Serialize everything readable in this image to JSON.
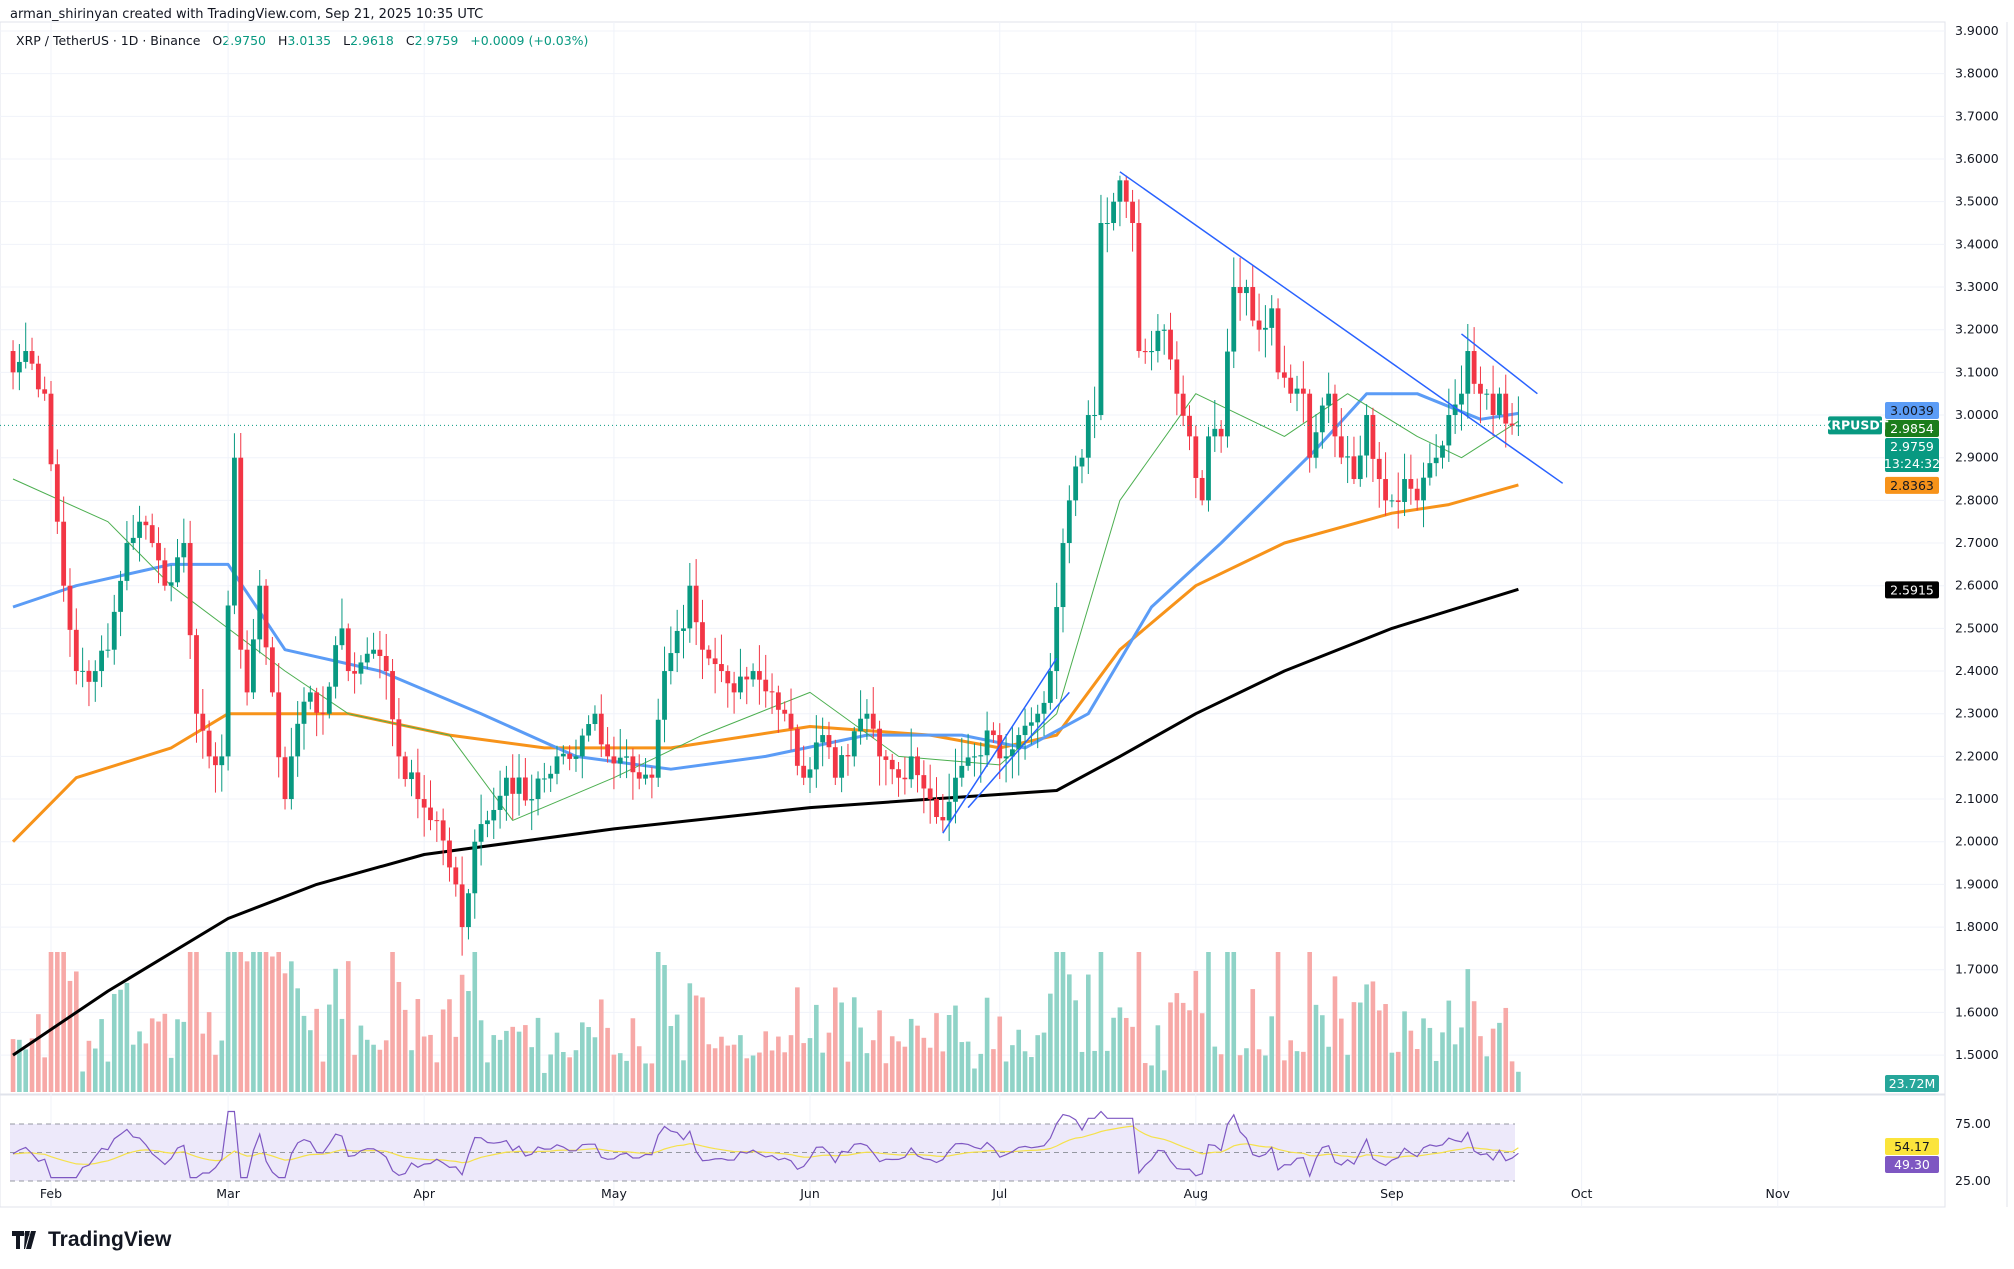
{
  "credit": "arman_shirinyan created with TradingView.com, Sep 21, 2025 10:35 UTC",
  "legend": {
    "symbol": "XRP / TetherUS · 1D · Binance",
    "o_label": "O",
    "o": "2.9750",
    "h_label": "H",
    "h": "3.0135",
    "l_label": "L",
    "l": "2.9618",
    "c_label": "C",
    "c": "2.9759",
    "change": "+0.0009 (+0.03%)"
  },
  "logo": "TradingView",
  "colors": {
    "up": "#089981",
    "down": "#f23645",
    "ma20": "#4caf50",
    "ma50": "#5b9cf6",
    "ma100": "#f7931a",
    "ma200": "#000000",
    "trendline": "#2962ff",
    "rsi": "#7e57c2",
    "rsi_ma": "#f5e14b"
  },
  "chart_data": {
    "type": "candlestick",
    "symbol": "XRPUSDT",
    "ylim": [
      1.45,
      3.9
    ],
    "y_ticks": [
      "3.9000",
      "3.8000",
      "3.7000",
      "3.6000",
      "3.5000",
      "3.4000",
      "3.3000",
      "3.2000",
      "3.1000",
      "3.0000",
      "2.9000",
      "2.8000",
      "2.7000",
      "2.6000",
      "2.5000",
      "2.4000",
      "2.3000",
      "2.2000",
      "2.1000",
      "2.0000",
      "1.9000",
      "1.8000",
      "1.7000",
      "1.6000",
      "1.5000"
    ],
    "x_ticks": [
      {
        "label": "Feb",
        "date": "2025-02-01"
      },
      {
        "label": "Mar",
        "date": "2025-03-01"
      },
      {
        "label": "Apr",
        "date": "2025-04-01"
      },
      {
        "label": "May",
        "date": "2025-05-01"
      },
      {
        "label": "Jun",
        "date": "2025-06-01"
      },
      {
        "label": "Jul",
        "date": "2025-07-01"
      },
      {
        "label": "Aug",
        "date": "2025-08-01"
      },
      {
        "label": "Sep",
        "date": "2025-09-01"
      },
      {
        "label": "Oct",
        "date": "2025-10-01"
      },
      {
        "label": "Nov",
        "date": "2025-11-01"
      }
    ],
    "close_keypoints": [
      [
        "2025-01-26",
        3.1
      ],
      [
        "2025-01-28",
        3.15
      ],
      [
        "2025-01-31",
        3.05
      ],
      [
        "2025-02-02",
        2.75
      ],
      [
        "2025-02-03",
        2.6
      ],
      [
        "2025-02-05",
        2.4
      ],
      [
        "2025-02-08",
        2.4
      ],
      [
        "2025-02-10",
        2.45
      ],
      [
        "2025-02-13",
        2.7
      ],
      [
        "2025-02-15",
        2.75
      ],
      [
        "2025-02-17",
        2.7
      ],
      [
        "2025-02-19",
        2.6
      ],
      [
        "2025-02-22",
        2.7
      ],
      [
        "2025-02-24",
        2.3
      ],
      [
        "2025-02-26",
        2.2
      ],
      [
        "2025-02-28",
        2.2
      ],
      [
        "2025-03-02",
        2.9
      ],
      [
        "2025-03-03",
        2.45
      ],
      [
        "2025-03-04",
        2.35
      ],
      [
        "2025-03-06",
        2.6
      ],
      [
        "2025-03-08",
        2.35
      ],
      [
        "2025-03-10",
        2.1
      ],
      [
        "2025-03-11",
        2.2
      ],
      [
        "2025-03-14",
        2.35
      ],
      [
        "2025-03-16",
        2.3
      ],
      [
        "2025-03-19",
        2.5
      ],
      [
        "2025-03-20",
        2.4
      ],
      [
        "2025-03-24",
        2.45
      ],
      [
        "2025-03-26",
        2.4
      ],
      [
        "2025-03-28",
        2.2
      ],
      [
        "2025-03-31",
        2.1
      ],
      [
        "2025-04-03",
        2.05
      ],
      [
        "2025-04-06",
        1.9
      ],
      [
        "2025-04-07",
        1.8
      ],
      [
        "2025-04-09",
        2.0
      ],
      [
        "2025-04-11",
        2.05
      ],
      [
        "2025-04-14",
        2.15
      ],
      [
        "2025-04-18",
        2.1
      ],
      [
        "2025-04-22",
        2.2
      ],
      [
        "2025-04-25",
        2.2
      ],
      [
        "2025-04-28",
        2.3
      ],
      [
        "2025-04-30",
        2.2
      ],
      [
        "2025-05-03",
        2.2
      ],
      [
        "2025-05-07",
        2.15
      ],
      [
        "2025-05-09",
        2.4
      ],
      [
        "2025-05-12",
        2.5
      ],
      [
        "2025-05-13",
        2.6
      ],
      [
        "2025-05-15",
        2.45
      ],
      [
        "2025-05-18",
        2.4
      ],
      [
        "2025-05-20",
        2.35
      ],
      [
        "2025-05-23",
        2.4
      ],
      [
        "2025-05-26",
        2.35
      ],
      [
        "2025-05-28",
        2.3
      ],
      [
        "2025-05-31",
        2.15
      ],
      [
        "2025-06-03",
        2.25
      ],
      [
        "2025-06-05",
        2.15
      ],
      [
        "2025-06-07",
        2.2
      ],
      [
        "2025-06-10",
        2.3
      ],
      [
        "2025-06-12",
        2.2
      ],
      [
        "2025-06-15",
        2.15
      ],
      [
        "2025-06-17",
        2.2
      ],
      [
        "2025-06-20",
        2.1
      ],
      [
        "2025-06-22",
        2.05
      ],
      [
        "2025-06-24",
        2.15
      ],
      [
        "2025-06-27",
        2.2
      ],
      [
        "2025-06-30",
        2.25
      ],
      [
        "2025-07-02",
        2.2
      ],
      [
        "2025-07-04",
        2.25
      ],
      [
        "2025-07-07",
        2.3
      ],
      [
        "2025-07-09",
        2.4
      ],
      [
        "2025-07-10",
        2.55
      ],
      [
        "2025-07-11",
        2.7
      ],
      [
        "2025-07-12",
        2.8
      ],
      [
        "2025-07-14",
        2.9
      ],
      [
        "2025-07-15",
        3.0
      ],
      [
        "2025-07-16",
        3.0
      ],
      [
        "2025-07-17",
        3.45
      ],
      [
        "2025-07-18",
        3.45
      ],
      [
        "2025-07-19",
        3.5
      ],
      [
        "2025-07-20",
        3.55
      ],
      [
        "2025-07-21",
        3.5
      ],
      [
        "2025-07-22",
        3.45
      ],
      [
        "2025-07-23",
        3.15
      ],
      [
        "2025-07-25",
        3.15
      ],
      [
        "2025-07-27",
        3.2
      ],
      [
        "2025-07-29",
        3.05
      ],
      [
        "2025-07-31",
        2.95
      ],
      [
        "2025-08-02",
        2.8
      ],
      [
        "2025-08-03",
        2.95
      ],
      [
        "2025-08-05",
        2.95
      ],
      [
        "2025-08-07",
        3.3
      ],
      [
        "2025-08-09",
        3.3
      ],
      [
        "2025-08-11",
        3.2
      ],
      [
        "2025-08-13",
        3.25
      ],
      [
        "2025-08-14",
        3.1
      ],
      [
        "2025-08-16",
        3.05
      ],
      [
        "2025-08-18",
        3.05
      ],
      [
        "2025-08-19",
        2.9
      ],
      [
        "2025-08-22",
        3.05
      ],
      [
        "2025-08-23",
        2.95
      ],
      [
        "2025-08-26",
        2.85
      ],
      [
        "2025-08-28",
        3.0
      ],
      [
        "2025-08-30",
        2.85
      ],
      [
        "2025-09-01",
        2.8
      ],
      [
        "2025-09-03",
        2.85
      ],
      [
        "2025-09-05",
        2.8
      ],
      [
        "2025-09-08",
        2.9
      ],
      [
        "2025-09-10",
        3.0
      ],
      [
        "2025-09-12",
        3.05
      ],
      [
        "2025-09-13",
        3.15
      ],
      [
        "2025-09-15",
        3.05
      ],
      [
        "2025-09-16",
        3.05
      ],
      [
        "2025-09-17",
        3.0
      ],
      [
        "2025-09-18",
        3.05
      ],
      [
        "2025-09-19",
        2.98
      ],
      [
        "2025-09-20",
        2.975
      ],
      [
        "2025-09-21",
        2.9759
      ]
    ],
    "moving_averages": [
      {
        "key": "ma200",
        "points": [
          [
            "2025-01-26",
            1.5
          ],
          [
            "2025-02-10",
            1.65
          ],
          [
            "2025-03-01",
            1.82
          ],
          [
            "2025-03-15",
            1.9
          ],
          [
            "2025-04-01",
            1.97
          ],
          [
            "2025-05-01",
            2.03
          ],
          [
            "2025-06-01",
            2.08
          ],
          [
            "2025-06-20",
            2.1
          ],
          [
            "2025-07-10",
            2.12
          ],
          [
            "2025-07-20",
            2.2
          ],
          [
            "2025-08-01",
            2.3
          ],
          [
            "2025-08-15",
            2.4
          ],
          [
            "2025-09-01",
            2.5
          ],
          [
            "2025-09-21",
            2.5915
          ]
        ],
        "last": "2.5915"
      },
      {
        "key": "ma100",
        "points": [
          [
            "2025-01-26",
            2.0
          ],
          [
            "2025-02-05",
            2.15
          ],
          [
            "2025-02-20",
            2.22
          ],
          [
            "2025-03-01",
            2.3
          ],
          [
            "2025-03-20",
            2.3
          ],
          [
            "2025-04-05",
            2.25
          ],
          [
            "2025-04-20",
            2.22
          ],
          [
            "2025-05-10",
            2.22
          ],
          [
            "2025-06-01",
            2.27
          ],
          [
            "2025-06-20",
            2.25
          ],
          [
            "2025-07-01",
            2.22
          ],
          [
            "2025-07-10",
            2.25
          ],
          [
            "2025-07-20",
            2.45
          ],
          [
            "2025-08-01",
            2.6
          ],
          [
            "2025-08-15",
            2.7
          ],
          [
            "2025-09-01",
            2.77
          ],
          [
            "2025-09-10",
            2.79
          ],
          [
            "2025-09-21",
            2.8363
          ]
        ],
        "last": "2.8363"
      },
      {
        "key": "ma50",
        "points": [
          [
            "2025-01-26",
            2.55
          ],
          [
            "2025-02-05",
            2.6
          ],
          [
            "2025-02-20",
            2.65
          ],
          [
            "2025-03-01",
            2.65
          ],
          [
            "2025-03-10",
            2.45
          ],
          [
            "2025-03-25",
            2.4
          ],
          [
            "2025-04-10",
            2.3
          ],
          [
            "2025-04-25",
            2.2
          ],
          [
            "2025-05-10",
            2.17
          ],
          [
            "2025-05-25",
            2.2
          ],
          [
            "2025-06-10",
            2.25
          ],
          [
            "2025-06-25",
            2.25
          ],
          [
            "2025-07-05",
            2.22
          ],
          [
            "2025-07-15",
            2.3
          ],
          [
            "2025-07-25",
            2.55
          ],
          [
            "2025-08-05",
            2.7
          ],
          [
            "2025-08-20",
            2.92
          ],
          [
            "2025-08-28",
            3.05
          ],
          [
            "2025-09-05",
            3.05
          ],
          [
            "2025-09-15",
            2.99
          ],
          [
            "2025-09-21",
            3.0039
          ]
        ],
        "last": "3.0039"
      },
      {
        "key": "ma20",
        "points": [
          [
            "2025-01-26",
            2.85
          ],
          [
            "2025-02-10",
            2.75
          ],
          [
            "2025-02-20",
            2.6
          ],
          [
            "2025-03-01",
            2.5
          ],
          [
            "2025-03-10",
            2.4
          ],
          [
            "2025-03-20",
            2.3
          ],
          [
            "2025-04-05",
            2.25
          ],
          [
            "2025-04-15",
            2.05
          ],
          [
            "2025-05-01",
            2.15
          ],
          [
            "2025-05-15",
            2.25
          ],
          [
            "2025-06-01",
            2.35
          ],
          [
            "2025-06-15",
            2.2
          ],
          [
            "2025-07-01",
            2.18
          ],
          [
            "2025-07-10",
            2.3
          ],
          [
            "2025-07-20",
            2.8
          ],
          [
            "2025-08-01",
            3.05
          ],
          [
            "2025-08-15",
            2.95
          ],
          [
            "2025-08-25",
            3.05
          ],
          [
            "2025-09-05",
            2.95
          ],
          [
            "2025-09-12",
            2.9
          ],
          [
            "2025-09-21",
            2.9854
          ]
        ],
        "last": "2.9854"
      }
    ],
    "trendlines": [
      [
        [
          "2025-07-20",
          3.57
        ],
        [
          "2025-09-28",
          2.84
        ]
      ],
      [
        [
          "2025-09-12",
          3.19
        ],
        [
          "2025-09-24",
          3.05
        ]
      ],
      [
        [
          "2025-06-22",
          2.02
        ],
        [
          "2025-07-10",
          2.43
        ]
      ],
      [
        [
          "2025-06-26",
          2.08
        ],
        [
          "2025-07-12",
          2.35
        ]
      ]
    ],
    "last_price": "2.9759",
    "countdown": "13:24:32",
    "volume_last": "23.72M",
    "rsi": {
      "ticks": [
        "75.00",
        "25.00"
      ],
      "value": "49.30",
      "ma_value": "54.17"
    }
  }
}
